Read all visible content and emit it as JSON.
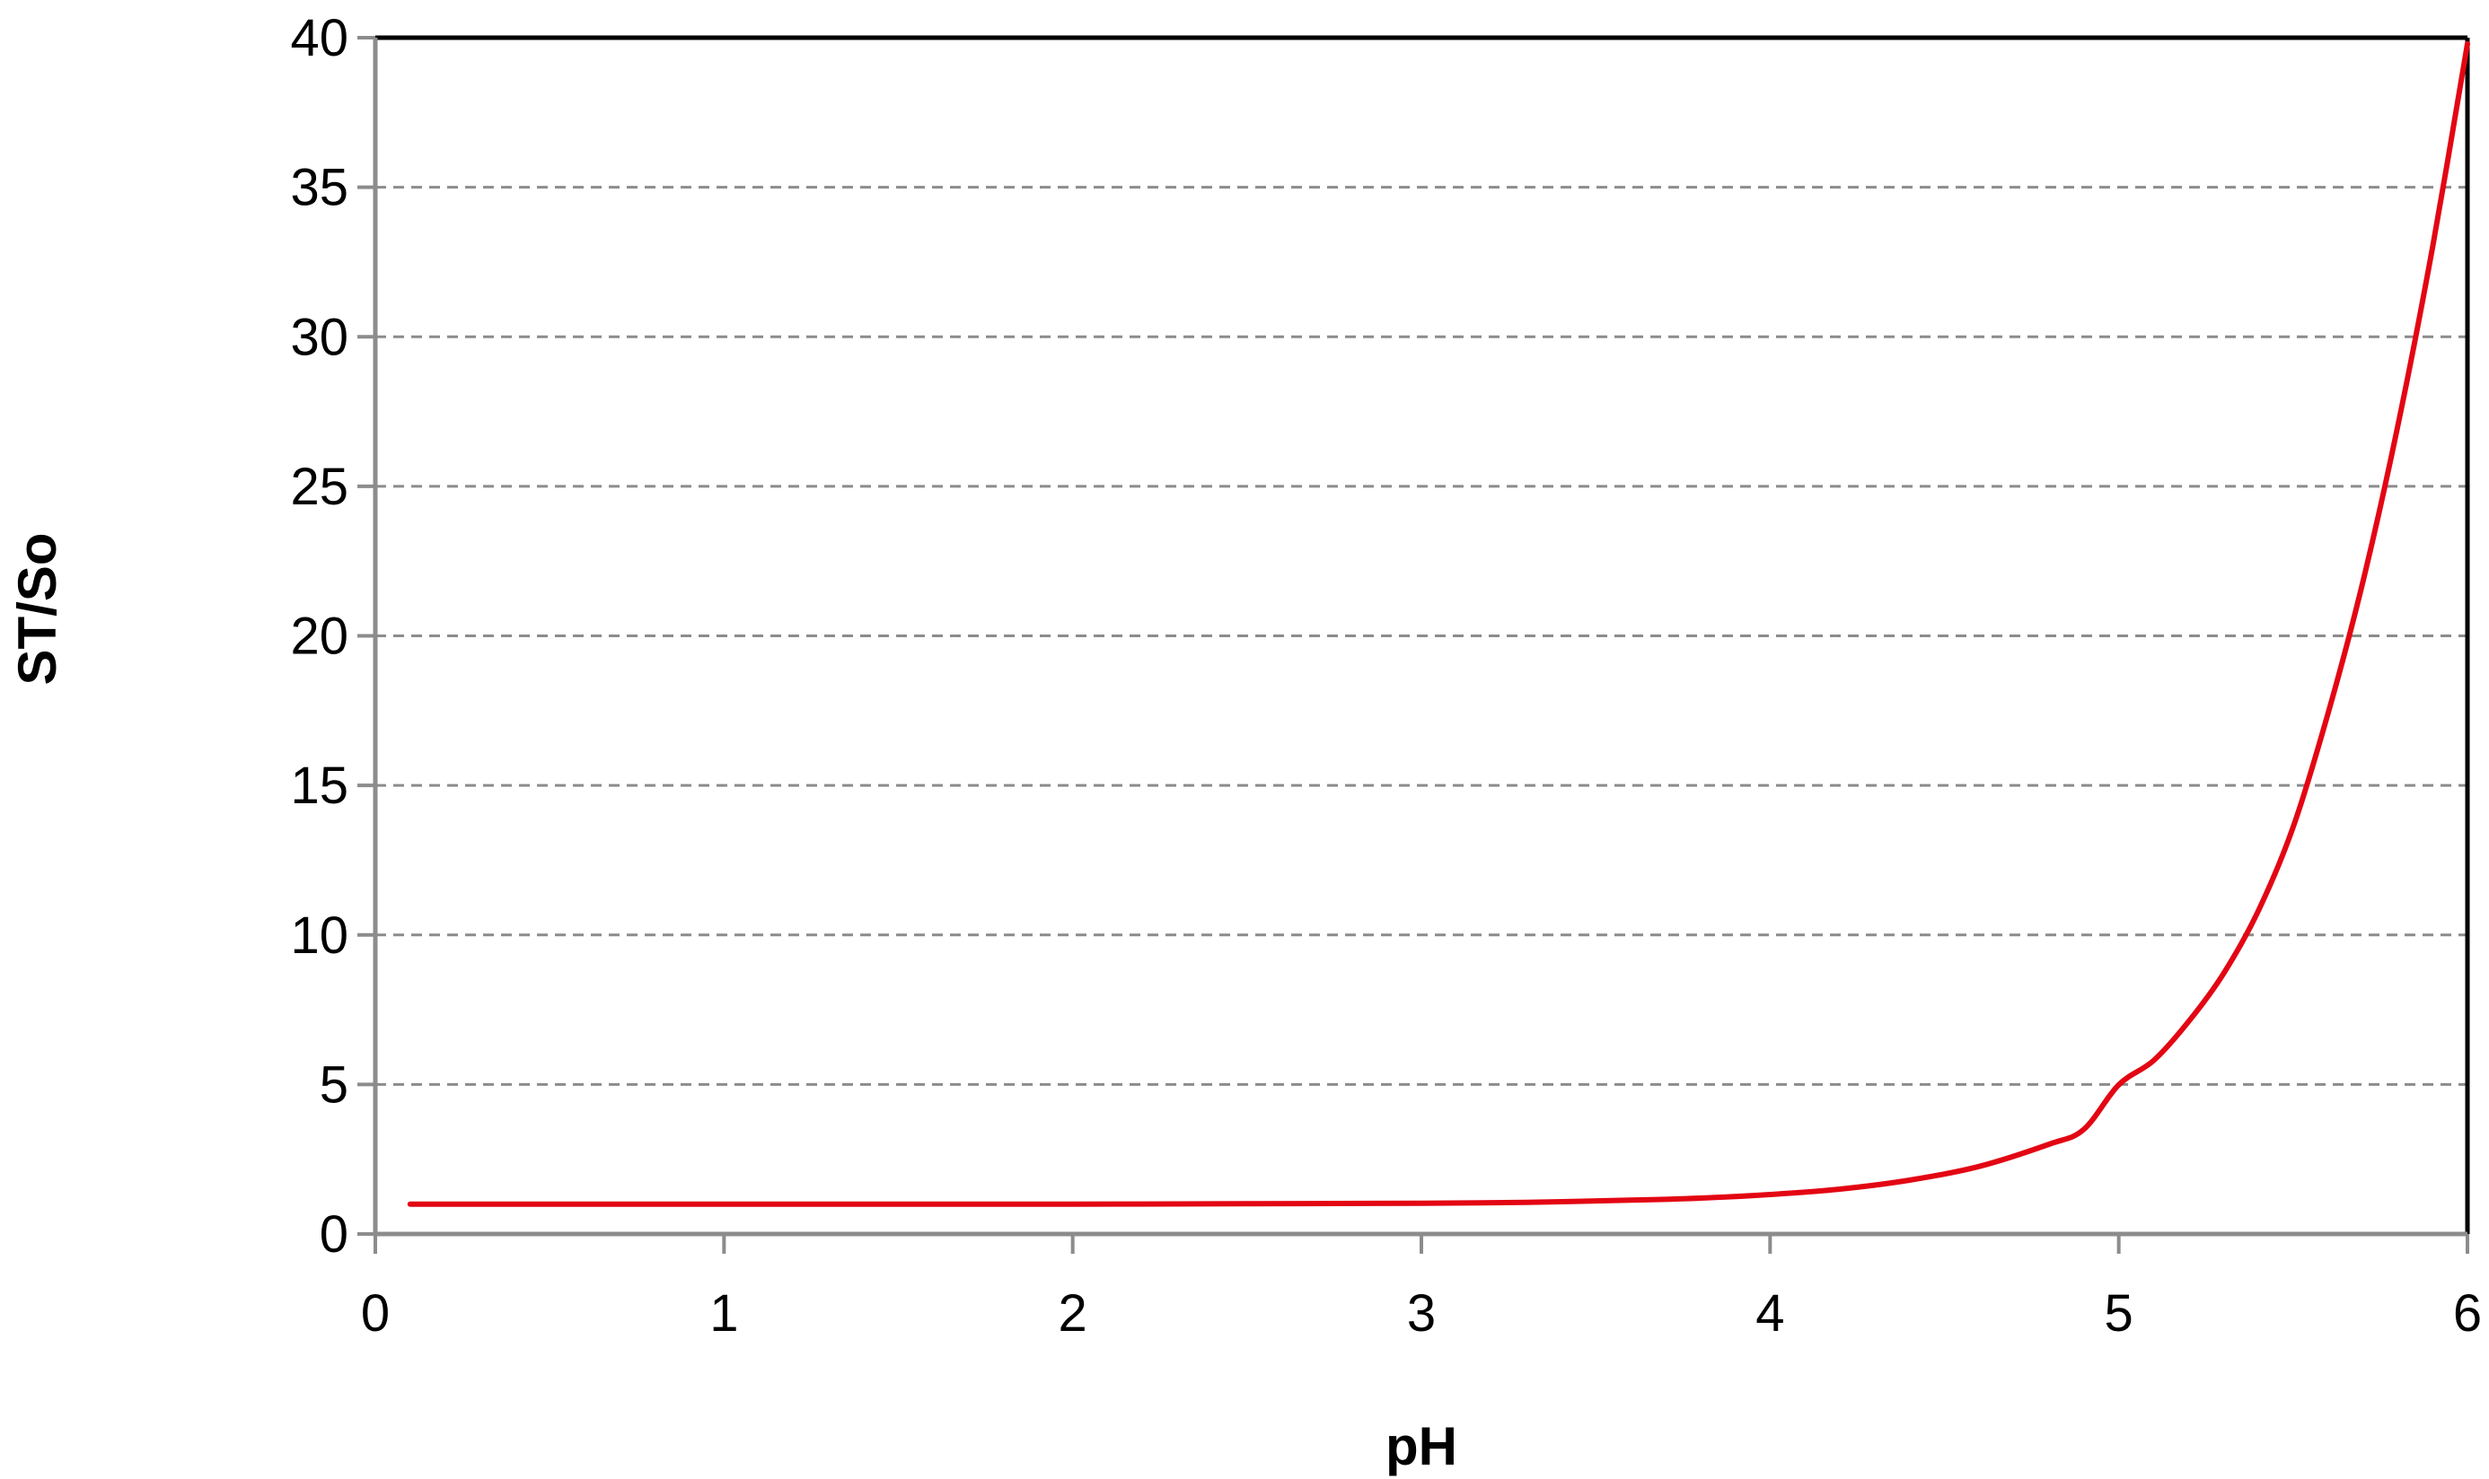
{
  "chart_data": {
    "type": "line",
    "title": "",
    "xlabel": "pH",
    "ylabel": "ST/So",
    "xlim": [
      0,
      6
    ],
    "ylim": [
      0,
      40
    ],
    "x_ticks": [
      0,
      1,
      2,
      3,
      4,
      5,
      6
    ],
    "y_ticks": [
      0,
      5,
      10,
      15,
      20,
      25,
      30,
      35,
      40
    ],
    "grid": {
      "horizontal": true,
      "vertical": false,
      "style": "dashed"
    },
    "legend": "none",
    "series": [
      {
        "color": "#e30613",
        "x": [
          0.1,
          0.5,
          1.0,
          1.5,
          2.0,
          2.5,
          3.0,
          3.3,
          3.6,
          3.8,
          4.0,
          4.2,
          4.4,
          4.6,
          4.8,
          4.9,
          5.0,
          5.1,
          5.2,
          5.3,
          5.4,
          5.5,
          5.6,
          5.7,
          5.8,
          5.9,
          6.0
        ],
        "y": [
          1.0,
          1.0,
          1.0,
          1.0,
          1.0,
          1.01,
          1.03,
          1.06,
          1.13,
          1.2,
          1.32,
          1.5,
          1.8,
          2.26,
          3.0,
          3.5,
          4.99,
          5.8,
          7.1,
          8.7,
          10.8,
          13.6,
          17.4,
          21.8,
          27.0,
          33.0,
          39.8
        ]
      }
    ]
  }
}
